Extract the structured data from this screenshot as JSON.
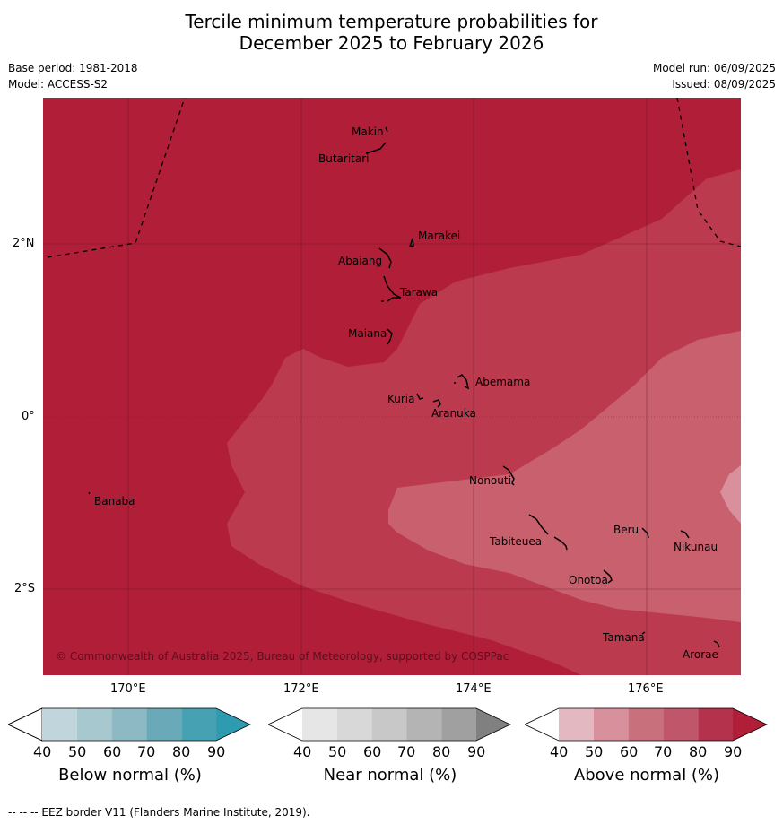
{
  "title": {
    "line1": "Tercile minimum temperature probabilities for",
    "line2": "December 2025 to February 2026"
  },
  "meta": {
    "base_period": "Base period: 1981-2018",
    "model": "Model: ACCESS-S2",
    "model_run": "Model run: 06/09/2025",
    "issued": "Issued: 08/09/2025"
  },
  "map": {
    "lat_labels": [
      "2°N",
      "0°",
      "2°S"
    ],
    "lon_labels": [
      "170°E",
      "172°E",
      "174°E",
      "176°E"
    ],
    "copyright": "© Commonwealth of Australia 2025, Bureau of Meteorology, supported by COSPPac",
    "islands": [
      {
        "name": "Makin"
      },
      {
        "name": "Butaritari"
      },
      {
        "name": "Marakei"
      },
      {
        "name": "Abaiang"
      },
      {
        "name": "Tarawa"
      },
      {
        "name": "Maiana"
      },
      {
        "name": "Abemama"
      },
      {
        "name": "Kuria"
      },
      {
        "name": "Aranuka"
      },
      {
        "name": "Banaba"
      },
      {
        "name": "Nonouti"
      },
      {
        "name": "Tabiteuea"
      },
      {
        "name": "Beru"
      },
      {
        "name": "Nikunau"
      },
      {
        "name": "Onotoa"
      },
      {
        "name": "Tamana"
      },
      {
        "name": "Arorae"
      }
    ],
    "colors": {
      "above_90": "#b11e38",
      "above_80": "#bc3a4e",
      "above_70": "#c8606e",
      "above_60": "#d8909c"
    }
  },
  "colorbars": [
    {
      "label": "Below normal (%)",
      "ticks": [
        "40",
        "50",
        "60",
        "70",
        "80",
        "90"
      ],
      "colors": [
        "#ffffff",
        "#c0d6dc",
        "#a8c8d0",
        "#8cb9c4",
        "#6aa9b7",
        "#46a1b2",
        "#2e9bb0"
      ]
    },
    {
      "label": "Near normal (%)",
      "ticks": [
        "40",
        "50",
        "60",
        "70",
        "80",
        "90"
      ],
      "colors": [
        "#ffffff",
        "#e6e6e6",
        "#d8d8d8",
        "#c8c8c8",
        "#b4b4b4",
        "#a0a0a0",
        "#808080"
      ]
    },
    {
      "label": "Above normal (%)",
      "ticks": [
        "40",
        "50",
        "60",
        "70",
        "80",
        "90"
      ],
      "colors": [
        "#ffffff",
        "#e3b8c0",
        "#d8909c",
        "#c8707c",
        "#c0566a",
        "#b5324c",
        "#b11e38"
      ]
    }
  ],
  "footer": "--  --  -- EEZ border V11 (Flanders Marine Institute, 2019)."
}
